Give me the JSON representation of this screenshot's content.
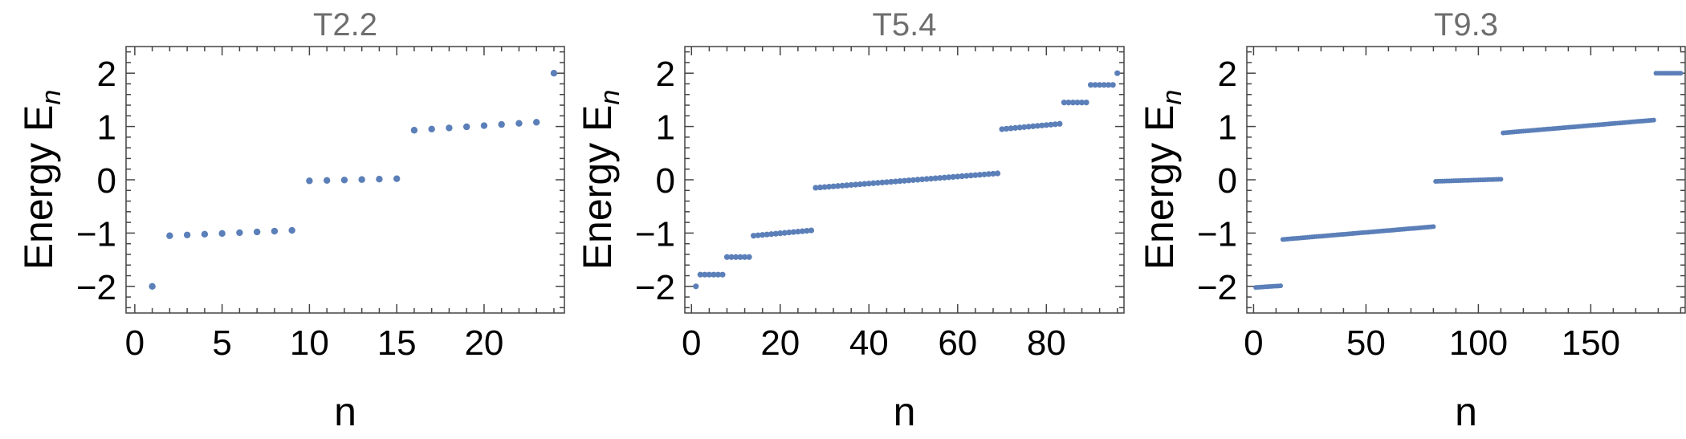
{
  "chart_data": [
    {
      "type": "scatter",
      "title": "T2.2",
      "xlabel": "n",
      "ylabel": "Energy E",
      "ylabel_subscript": "n",
      "xlim": [
        -0.5,
        24.6
      ],
      "ylim": [
        -2.5,
        2.5
      ],
      "xticks": [
        0,
        5,
        10,
        15,
        20
      ],
      "yticks": [
        -2,
        -1,
        0,
        1,
        2
      ],
      "color": "#5b7fb8",
      "groups": [
        {
          "start": 1,
          "end": 1,
          "y0": -2.0,
          "y1": -2.0
        },
        {
          "start": 2,
          "end": 9,
          "y0": -1.05,
          "y1": -0.95
        },
        {
          "start": 10,
          "end": 15,
          "y0": -0.02,
          "y1": 0.02
        },
        {
          "start": 16,
          "end": 23,
          "y0": 0.93,
          "y1": 1.08
        },
        {
          "start": 24,
          "end": 24,
          "y0": 2.0,
          "y1": 2.0
        }
      ]
    },
    {
      "type": "scatter",
      "title": "T5.4",
      "xlabel": "n",
      "ylabel": "Energy E",
      "ylabel_subscript": "n",
      "xlim": [
        -1.5,
        97.5
      ],
      "ylim": [
        -2.5,
        2.5
      ],
      "xticks": [
        0,
        20,
        40,
        60,
        80
      ],
      "yticks": [
        -2,
        -1,
        0,
        1,
        2
      ],
      "color": "#5b7fb8",
      "groups": [
        {
          "start": 1,
          "end": 1,
          "y0": -2.0,
          "y1": -2.0
        },
        {
          "start": 2,
          "end": 7,
          "y0": -1.78,
          "y1": -1.78
        },
        {
          "start": 8,
          "end": 13,
          "y0": -1.45,
          "y1": -1.45
        },
        {
          "start": 14,
          "end": 27,
          "y0": -1.05,
          "y1": -0.95
        },
        {
          "start": 28,
          "end": 69,
          "y0": -0.15,
          "y1": 0.12
        },
        {
          "start": 70,
          "end": 83,
          "y0": 0.95,
          "y1": 1.05
        },
        {
          "start": 84,
          "end": 89,
          "y0": 1.45,
          "y1": 1.45
        },
        {
          "start": 90,
          "end": 95,
          "y0": 1.78,
          "y1": 1.78
        },
        {
          "start": 96,
          "end": 96,
          "y0": 2.0,
          "y1": 2.0
        }
      ]
    },
    {
      "type": "scatter",
      "title": "T9.3",
      "xlabel": "n",
      "ylabel": "Energy E",
      "ylabel_subscript": "n",
      "xlim": [
        -3,
        192
      ],
      "ylim": [
        -2.5,
        2.5
      ],
      "xticks": [
        0,
        50,
        100,
        150
      ],
      "yticks": [
        -2,
        -1,
        0,
        1,
        2
      ],
      "color": "#5b7fb8",
      "groups": [
        {
          "start": 1,
          "end": 12,
          "y0": -2.02,
          "y1": -1.99
        },
        {
          "start": 13,
          "end": 80,
          "y0": -1.12,
          "y1": -0.88
        },
        {
          "start": 81,
          "end": 110,
          "y0": -0.03,
          "y1": 0.01
        },
        {
          "start": 111,
          "end": 178,
          "y0": 0.88,
          "y1": 1.12
        },
        {
          "start": 179,
          "end": 190,
          "y0": 2.0,
          "y1": 2.0
        }
      ]
    }
  ]
}
